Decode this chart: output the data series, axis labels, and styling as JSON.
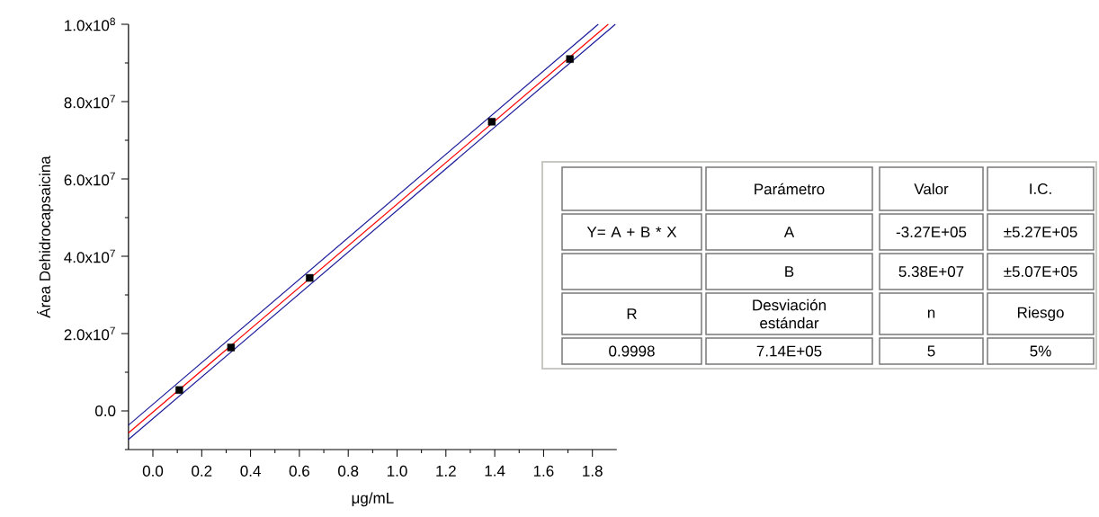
{
  "chart_data": [
    {
      "type": "scatter",
      "xlabel": "μg/mL",
      "ylabel": "Área Dehidrocapsaicina",
      "xlim": [
        -0.1,
        1.9
      ],
      "ylim": [
        -10000000,
        100000000
      ],
      "xticks": [
        {
          "value": 0,
          "label": "0.0"
        },
        0.2,
        0.4,
        0.6,
        0.8,
        {
          "value": 1,
          "label": "1.0"
        },
        1.2,
        1.4,
        1.6,
        1.8,
        {
          "value": 0.1,
          "label": null
        },
        {
          "value": 0.3,
          "label": null
        },
        {
          "value": 0.5,
          "label": null
        },
        {
          "value": 0.7,
          "label": null
        },
        {
          "value": 0.9,
          "label": null
        },
        {
          "value": 1.1,
          "label": null
        },
        {
          "value": 1.3,
          "label": null
        },
        {
          "value": 1.5,
          "label": null
        },
        {
          "value": 1.7,
          "label": null
        }
      ],
      "yticks": [
        {
          "value": 0,
          "label": "0.0"
        },
        {
          "value": 20000000,
          "label": "2.0x10$^{7}$"
        },
        {
          "value": 40000000,
          "label": "4.0x10$^{7}$"
        },
        {
          "value": 60000000,
          "label": "6.0x10$^{7}$"
        },
        {
          "value": 80000000,
          "label": "8.0x10$^{7}$"
        },
        {
          "value": 100000000,
          "label": "1.0x10$^{8}$"
        },
        {
          "value": -10000000,
          "label": null
        },
        {
          "value": 10000000,
          "label": null
        },
        {
          "value": 30000000,
          "label": null
        },
        {
          "value": 50000000,
          "label": null
        },
        {
          "value": 70000000,
          "label": null
        },
        {
          "value": 90000000,
          "label": null
        }
      ],
      "marker": "square",
      "grid": false,
      "series": [
        {
          "type": "line",
          "marker": "none",
          "color": "#ff0000",
          "x": [
            -0.1,
            1.865
          ],
          "values": [
            -5700000,
            100000000
          ]
        },
        {
          "type": "line",
          "marker": "none",
          "color": "#1a1a99",
          "x": [
            -0.1,
            1.824
          ],
          "values": [
            -3700000,
            100000000
          ]
        },
        {
          "type": "line",
          "marker": "none",
          "color": "#1a1a99",
          "x": [
            -0.1,
            1.894
          ],
          "values": [
            -7400000,
            100000000
          ]
        },
        {
          "type": "scatter",
          "color": "#000000",
          "x": [
            0.108,
            0.32,
            0.642,
            1.388,
            1.708
          ],
          "values": [
            5400000,
            16400000,
            34400000,
            74800000,
            91000000
          ]
        }
      ]
    },
    {
      "type": "other",
      "annotations": [
        "Parámetro",
        "Valor",
        "I.C.",
        "Y= A + B * X",
        "A",
        "-3.27E+05",
        "±5.27E+05",
        "B",
        "5.38E+07",
        "±5.07E+05",
        "R",
        "Desviación estándar",
        "n",
        "Riesgo",
        "0.9998",
        "7.14E+05",
        "5",
        "5%"
      ]
    }
  ]
}
